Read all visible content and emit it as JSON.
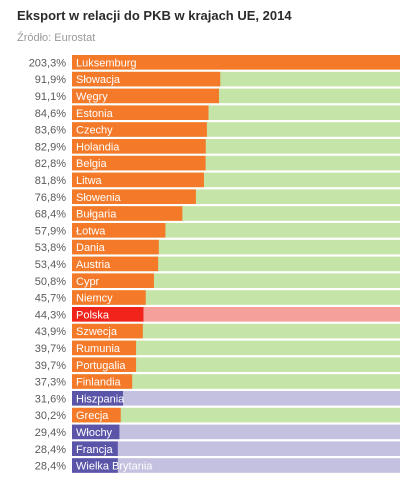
{
  "header": {
    "title": "Eksport w relacji do PKB w krajach UE, 2014",
    "source": "Źródło: Eurostat"
  },
  "colors": {
    "default_bar": "#f47a2a",
    "default_track": "#c5e4a8",
    "highlight_bar": "#f0241b",
    "highlight_track": "#f6a09c",
    "low_bar": "#5a55a8",
    "low_track": "#c4c0e0",
    "label_text": "#ffffff",
    "value_text": "#5a5a5a"
  },
  "chart_data": {
    "type": "bar",
    "orientation": "horizontal",
    "xlim": [
      0,
      203.3
    ],
    "grid": false,
    "categories": [
      "Luksemburg",
      "Słowacja",
      "Węgry",
      "Estonia",
      "Czechy",
      "Holandia",
      "Belgia",
      "Litwa",
      "Słowenia",
      "Bułgaria",
      "Łotwa",
      "Dania",
      "Austria",
      "Cypr",
      "Niemcy",
      "Polska",
      "Szwecja",
      "Rumunia",
      "Portugalia",
      "Finlandia",
      "Hiszpania",
      "Grecja",
      "Włochy",
      "Francja",
      "Wielka Brytania"
    ],
    "values": [
      203.3,
      91.9,
      91.1,
      84.6,
      83.6,
      82.9,
      82.8,
      81.8,
      76.8,
      68.4,
      57.9,
      53.8,
      53.4,
      50.8,
      45.7,
      44.3,
      43.9,
      39.7,
      39.7,
      37.3,
      31.6,
      30.2,
      29.4,
      28.4,
      28.4
    ],
    "value_labels": [
      "203,3%",
      "91,9%",
      "91,1%",
      "84,6%",
      "83,6%",
      "82,9%",
      "82,8%",
      "81,8%",
      "76,8%",
      "68,4%",
      "57,9%",
      "53,8%",
      "53,4%",
      "50,8%",
      "45,7%",
      "44,3%",
      "43,9%",
      "39,7%",
      "39,7%",
      "37,3%",
      "31,6%",
      "30,2%",
      "29,4%",
      "28,4%",
      "28,4%"
    ],
    "groups": [
      "default",
      "default",
      "default",
      "default",
      "default",
      "default",
      "default",
      "default",
      "default",
      "default",
      "default",
      "default",
      "default",
      "default",
      "default",
      "highlight",
      "default",
      "default",
      "default",
      "default",
      "low",
      "default",
      "low",
      "low",
      "low"
    ]
  }
}
